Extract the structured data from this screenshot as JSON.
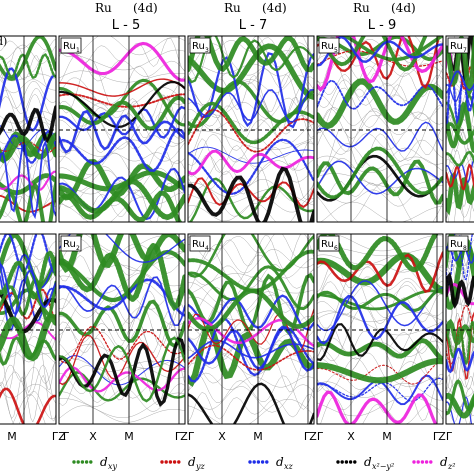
{
  "chart_data": {
    "type": "line",
    "title": "",
    "column_headers": [
      {
        "element": "Ru",
        "orbital": "(4d)",
        "layer": "L - 5"
      },
      {
        "element": "Ru",
        "orbital": "(4d)",
        "layer": "L - 7"
      },
      {
        "element": "Ru",
        "orbital": "(4d)",
        "layer": "L - 9"
      }
    ],
    "cut_header_fragment": "d)",
    "rows": [
      {
        "panels": [
          {
            "label": "",
            "sub": ""
          },
          {
            "label": "Ru",
            "sub": "1"
          },
          {
            "label": "Ru",
            "sub": "3"
          },
          {
            "label": "Ru",
            "sub": "5"
          },
          {
            "label": "Ru",
            "sub": "7"
          }
        ]
      },
      {
        "panels": [
          {
            "label": "",
            "sub": ""
          },
          {
            "label": "Ru",
            "sub": "2"
          },
          {
            "label": "Ru",
            "sub": "4"
          },
          {
            "label": "Ru",
            "sub": "6"
          },
          {
            "label": "Ru",
            "sub": "8"
          }
        ]
      }
    ],
    "x_tick_sequence": [
      "M",
      "Γ",
      "Z",
      "Γ",
      "X",
      "M",
      "Γ",
      "Z",
      "Γ",
      "X",
      "M",
      "Γ",
      "Z",
      "Γ",
      "X",
      "M",
      "Γ",
      "Z",
      "Γ"
    ],
    "fermi_level_line": "dashed",
    "legend": {
      "position": "bottom",
      "entries": [
        {
          "name": "d",
          "sub": "xy",
          "color": "#2e8b22",
          "marker": "dot"
        },
        {
          "name": "d",
          "sub": "yz",
          "color": "#cc1111",
          "marker": "dot"
        },
        {
          "name": "d",
          "sub": "xz",
          "color": "#1f2ee8",
          "marker": "dot"
        },
        {
          "name": "d",
          "sub": "x²−y²",
          "color": "#000000",
          "marker": "dot"
        },
        {
          "name": "d",
          "sub": "z²",
          "color": "#ee22dd",
          "marker": "dot"
        }
      ]
    },
    "colors": {
      "dxy": "#2e8b22",
      "dyz": "#cc1111",
      "dxz": "#1f2ee8",
      "dx2y2": "#000000",
      "dz2": "#ee22dd",
      "bands": "#8a8a8a"
    }
  }
}
